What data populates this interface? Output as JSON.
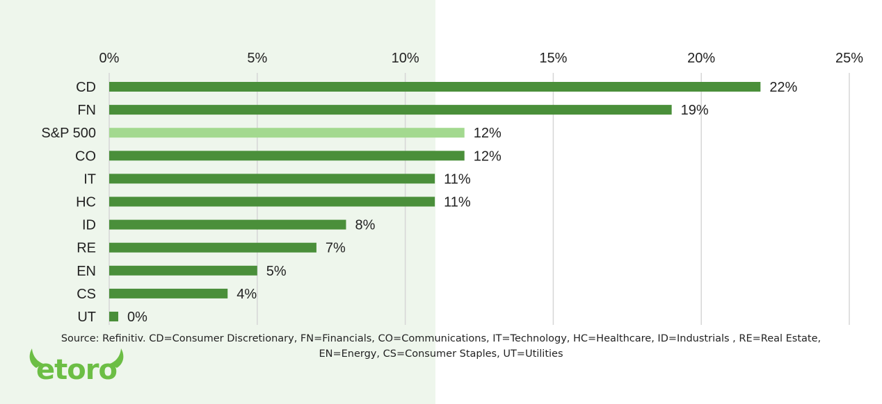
{
  "chart_data": {
    "type": "bar",
    "orientation": "horizontal",
    "categories": [
      "CD",
      "FN",
      "S&P 500",
      "CO",
      "IT",
      "HC",
      "ID",
      "RE",
      "EN",
      "CS",
      "UT"
    ],
    "values": [
      22,
      19,
      12,
      12,
      11,
      11,
      8,
      7,
      5,
      4,
      0
    ],
    "data_labels": [
      "22%",
      "19%",
      "12%",
      "12%",
      "11%",
      "11%",
      "8%",
      "7%",
      "5%",
      "4%",
      "0%"
    ],
    "highlight_category": "S&P 500",
    "xlim": [
      0,
      25
    ],
    "x_ticks": [
      0,
      5,
      10,
      15,
      20,
      25
    ],
    "x_tick_labels": [
      "0%",
      "5%",
      "10%",
      "15%",
      "20%",
      "25%"
    ],
    "x_axis_position": "top",
    "grid": "vertical",
    "legend": "none",
    "colors": {
      "bar": "#4a8f3a",
      "highlight_bar": "#a3d98f",
      "gridline": "#d6d6d6",
      "panel_background": "#eef6ec"
    }
  },
  "footer": {
    "source_line1": "Source: Refinitiv. CD=Consumer Discretionary, FN=Financials, CO=Communications, IT=Technology,  HC=Healthcare, ID=Industrials , RE=Real Estate,",
    "source_line2": "EN=Energy, CS=Consumer Staples, UT=Utilities"
  },
  "logo": {
    "text": "etoro",
    "icon": "etoro-bull-horns-logo",
    "color": "#6cbe45"
  }
}
